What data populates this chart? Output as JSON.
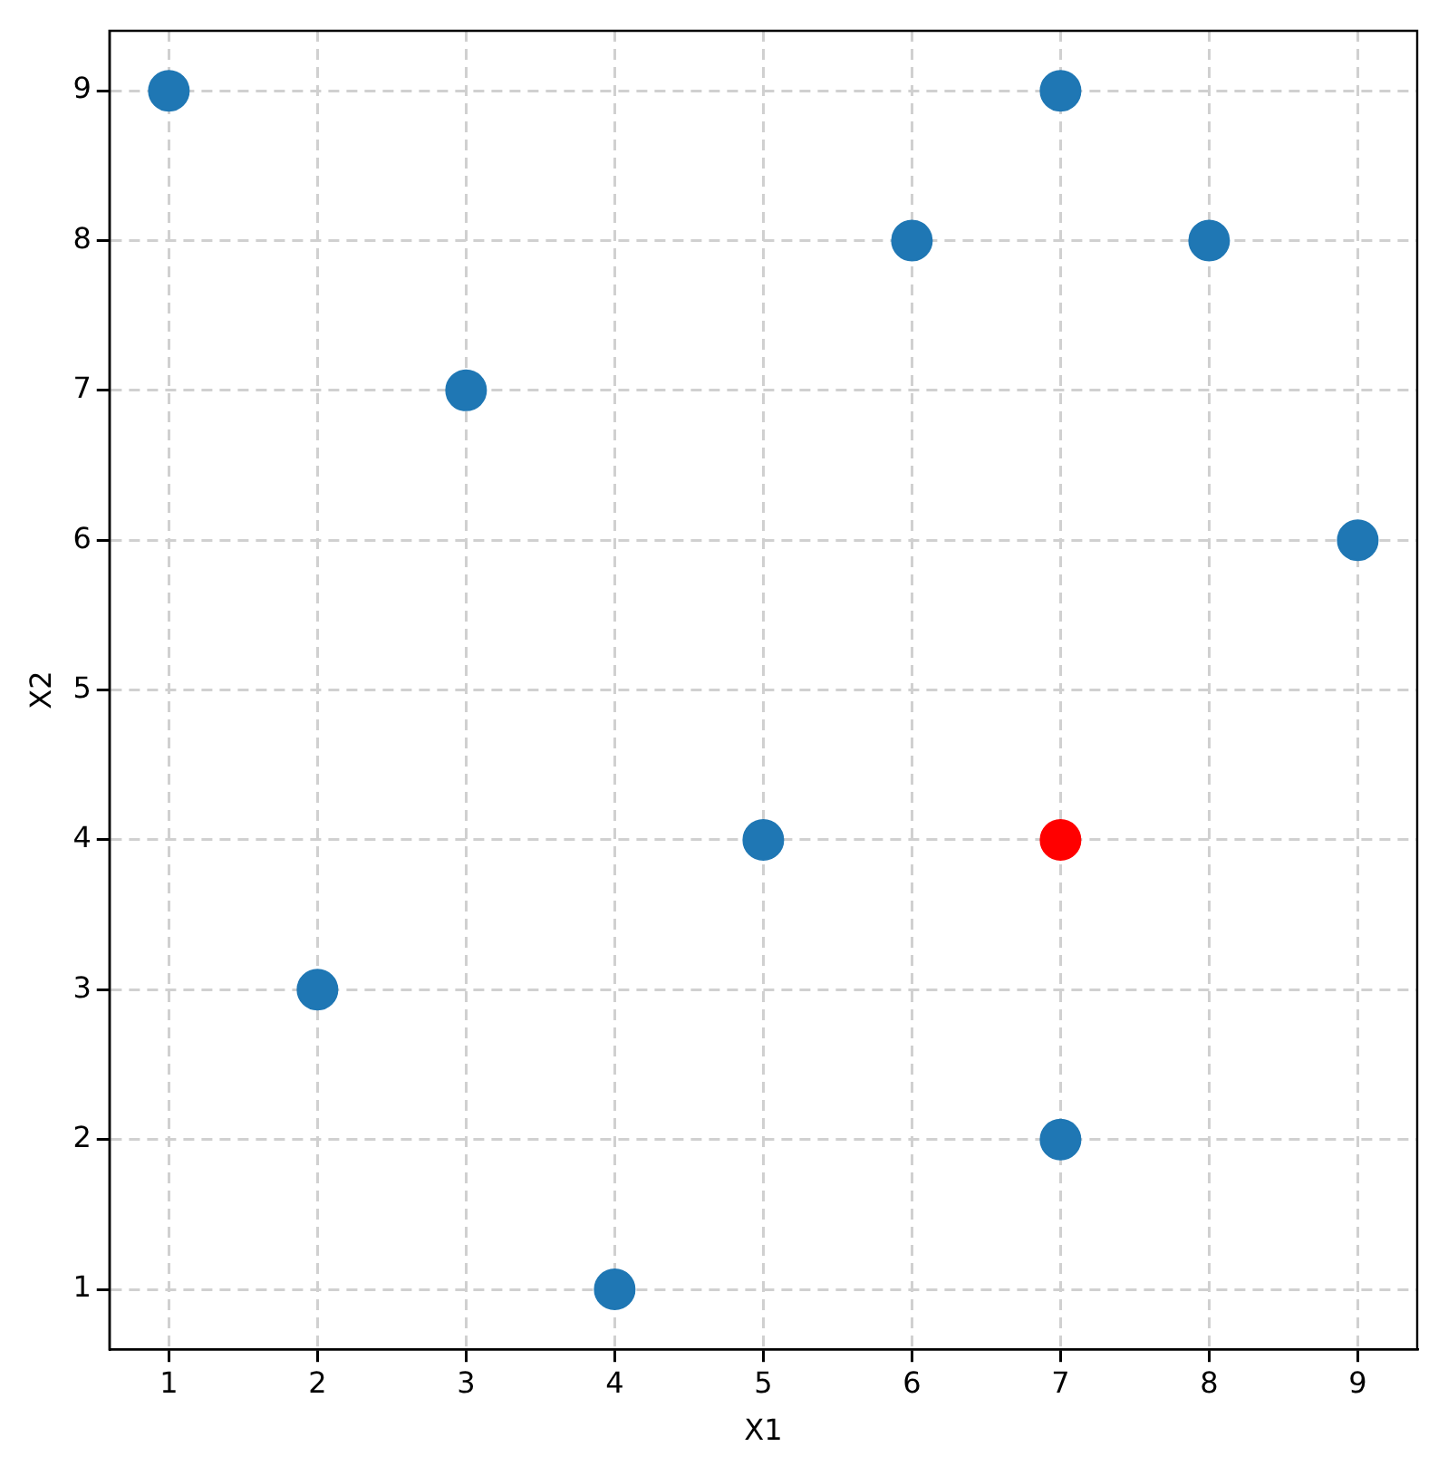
{
  "chart_data": {
    "type": "scatter",
    "xlabel": "X1",
    "ylabel": "X2",
    "xlim": [
      0.6,
      9.4
    ],
    "ylim": [
      0.6,
      9.4
    ],
    "xticks": [
      1,
      2,
      3,
      4,
      5,
      6,
      7,
      8,
      9
    ],
    "yticks": [
      1,
      2,
      3,
      4,
      5,
      6,
      7,
      8,
      9
    ],
    "grid": true,
    "marker": "circle",
    "series": [
      {
        "color": "#1f77b4",
        "x": [
          1,
          3,
          7,
          6,
          8,
          9,
          5,
          2,
          4,
          7
        ],
        "values": [
          9,
          7,
          9,
          8,
          8,
          6,
          4,
          3,
          1,
          2
        ]
      },
      {
        "color": "#ff0000",
        "x": [
          7
        ],
        "values": [
          4
        ]
      }
    ]
  }
}
